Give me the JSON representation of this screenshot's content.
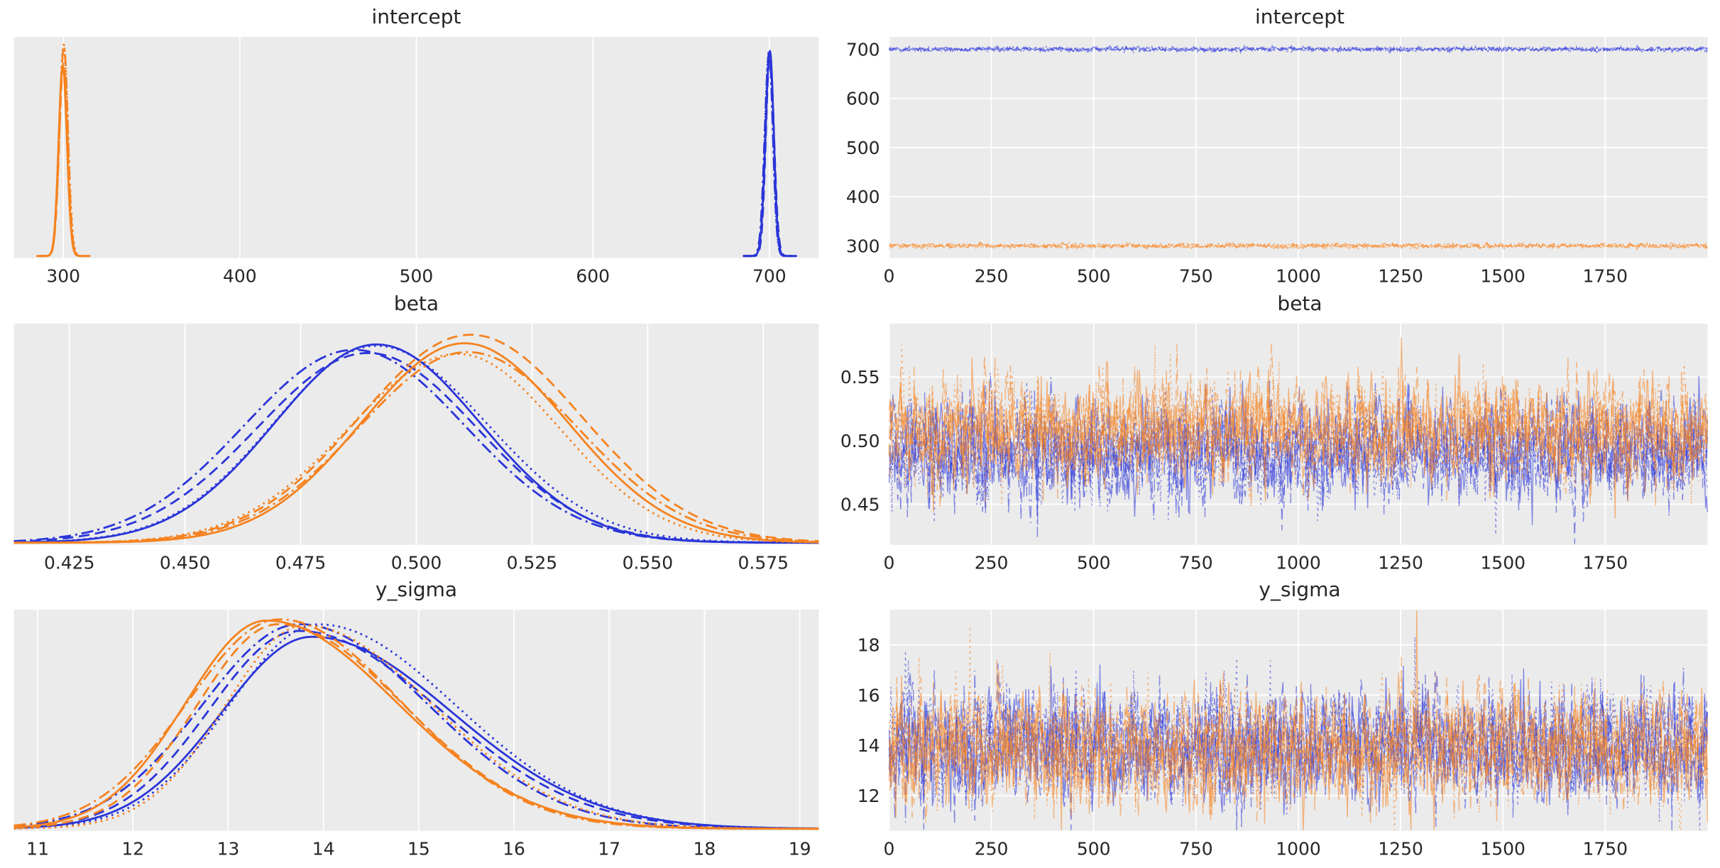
{
  "figure": {
    "background": "#ffffff",
    "axes_background": "#ebebeb",
    "grid_color": "#ffffff",
    "text_color": "#262626",
    "blue": "#2a35d8",
    "orange": "#f5821f",
    "legend": "none",
    "grid": "on"
  },
  "chart_data": [
    {
      "id": "posterior-intercept",
      "title": "intercept",
      "type": "kde",
      "xlim": [
        272,
        728
      ],
      "xticks": [
        300,
        400,
        500,
        600,
        700
      ],
      "xtick_labels": [
        "300",
        "400",
        "500",
        "600",
        "700"
      ],
      "linestyles": [
        "solid",
        "dashed",
        "dotted",
        "dashdot"
      ],
      "series": [
        {
          "name": "chain-group-orange",
          "color": "orange",
          "mean": 300,
          "sd": 2.3,
          "chains": 4
        },
        {
          "name": "chain-group-blue",
          "color": "blue",
          "mean": 700,
          "sd": 2.3,
          "chains": 4
        }
      ]
    },
    {
      "id": "trace-intercept",
      "title": "intercept",
      "type": "trace",
      "xlim": [
        0,
        2000
      ],
      "xticks": [
        0,
        250,
        500,
        750,
        1000,
        1250,
        1500,
        1750
      ],
      "xtick_labels": [
        "0",
        "250",
        "500",
        "750",
        "1000",
        "1250",
        "1500",
        "1750"
      ],
      "ylim": [
        275,
        725
      ],
      "yticks": [
        300,
        400,
        500,
        600,
        700
      ],
      "ytick_labels": [
        "300",
        "400",
        "500",
        "600",
        "700"
      ],
      "linestyles": [
        "solid",
        "dashed",
        "dotted",
        "dashdot"
      ],
      "series": [
        {
          "name": "chain-group-blue",
          "color": "blue",
          "mean": 700,
          "sd": 2.4,
          "chains": 4
        },
        {
          "name": "chain-group-orange",
          "color": "orange",
          "mean": 300,
          "sd": 2.4,
          "chains": 4
        }
      ]
    },
    {
      "id": "posterior-beta",
      "title": "beta",
      "type": "kde",
      "xlim": [
        0.413,
        0.587
      ],
      "xticks": [
        0.425,
        0.45,
        0.475,
        0.5,
        0.525,
        0.55,
        0.575
      ],
      "xtick_labels": [
        "0.425",
        "0.450",
        "0.475",
        "0.500",
        "0.525",
        "0.550",
        "0.575"
      ],
      "linestyles": [
        "solid",
        "dashed",
        "dotted",
        "dashdot"
      ],
      "series": [
        {
          "name": "chain-group-blue",
          "color": "blue",
          "mean": 0.49,
          "sd": 0.0235,
          "chains": 4
        },
        {
          "name": "chain-group-orange",
          "color": "orange",
          "mean": 0.5095,
          "sd": 0.0235,
          "chains": 4
        }
      ]
    },
    {
      "id": "trace-beta",
      "title": "beta",
      "type": "trace",
      "xlim": [
        0,
        2000
      ],
      "xticks": [
        0,
        250,
        500,
        750,
        1000,
        1250,
        1500,
        1750
      ],
      "xtick_labels": [
        "0",
        "250",
        "500",
        "750",
        "1000",
        "1250",
        "1500",
        "1750"
      ],
      "ylim": [
        0.418,
        0.592
      ],
      "yticks": [
        0.45,
        0.5,
        0.55
      ],
      "ytick_labels": [
        "0.45",
        "0.50",
        "0.55"
      ],
      "linestyles": [
        "solid",
        "dashed",
        "dotted",
        "dashdot"
      ],
      "series": [
        {
          "name": "chain-group-blue",
          "color": "blue",
          "mean": 0.492,
          "sd": 0.021,
          "chains": 4
        },
        {
          "name": "chain-group-orange",
          "color": "orange",
          "mean": 0.507,
          "sd": 0.021,
          "chains": 4
        }
      ]
    },
    {
      "id": "posterior-y-sigma",
      "title": "y_sigma",
      "type": "kde",
      "xlim": [
        10.75,
        19.2
      ],
      "xticks": [
        11,
        12,
        13,
        14,
        15,
        16,
        17,
        18,
        19
      ],
      "xtick_labels": [
        "11",
        "12",
        "13",
        "14",
        "15",
        "16",
        "17",
        "18",
        "19"
      ],
      "linestyles": [
        "solid",
        "dashed",
        "dotted",
        "dashdot"
      ],
      "series": [
        {
          "name": "chain-group-blue",
          "color": "blue",
          "mean": 13.9,
          "sd_left": 0.95,
          "sd_right": 1.4,
          "chains": 4
        },
        {
          "name": "chain-group-orange",
          "color": "orange",
          "mean": 13.6,
          "sd_left": 0.9,
          "sd_right": 1.35,
          "chains": 4
        }
      ]
    },
    {
      "id": "trace-y-sigma",
      "title": "y_sigma",
      "type": "trace",
      "xlim": [
        0,
        2000
      ],
      "xticks": [
        0,
        250,
        500,
        750,
        1000,
        1250,
        1500,
        1750
      ],
      "xtick_labels": [
        "0",
        "250",
        "500",
        "750",
        "1000",
        "1250",
        "1500",
        "1750"
      ],
      "ylim": [
        10.6,
        19.4
      ],
      "yticks": [
        12,
        14,
        16,
        18
      ],
      "ytick_labels": [
        "12",
        "14",
        "16",
        "18"
      ],
      "linestyles": [
        "solid",
        "dashed",
        "dotted",
        "dashdot"
      ],
      "series": [
        {
          "name": "chain-group-blue",
          "color": "blue",
          "mean": 14.0,
          "sd": 1.15,
          "chains": 4
        },
        {
          "name": "chain-group-orange",
          "color": "orange",
          "mean": 13.9,
          "sd": 1.15,
          "chains": 4
        }
      ]
    }
  ]
}
